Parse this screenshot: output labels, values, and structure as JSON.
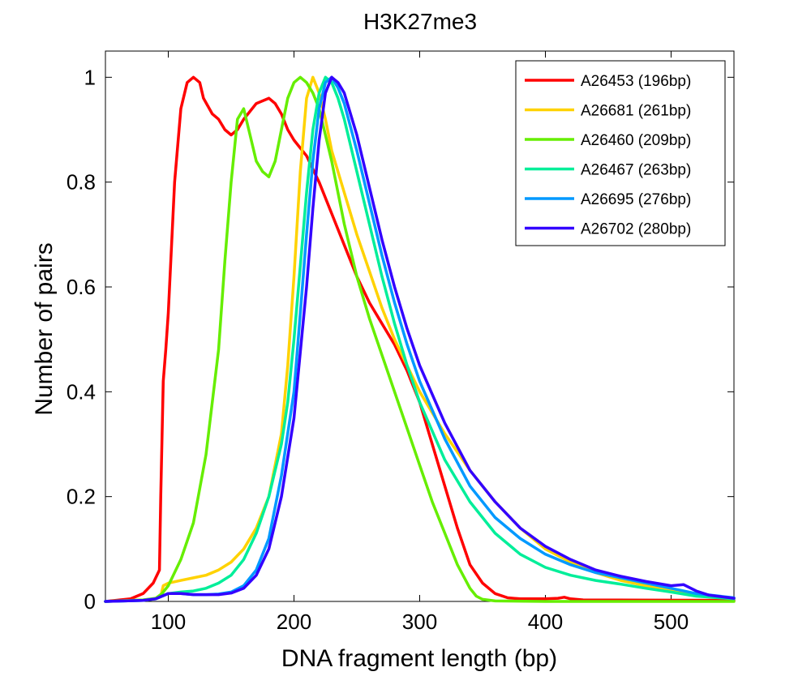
{
  "chart_data": {
    "type": "line",
    "title": "H3K27me3",
    "xlabel": "DNA fragment length (bp)",
    "ylabel": "Number of pairs",
    "xlim": [
      50,
      550
    ],
    "ylim": [
      0,
      1.05
    ],
    "xticks": [
      100,
      200,
      300,
      400,
      500
    ],
    "xtick_labels": [
      "100",
      "200",
      "300",
      "400",
      "500"
    ],
    "yticks": [
      0,
      0.2,
      0.4,
      0.6,
      0.8,
      1
    ],
    "ytick_labels": [
      "0",
      "0.2",
      "0.4",
      "0.6",
      "0.8",
      "1"
    ],
    "grid": false,
    "legend_position": "top-right",
    "series": [
      {
        "name": "A26453 (196bp)",
        "color": "#ff0000",
        "x": [
          50,
          70,
          80,
          88,
          93,
          94,
          96,
          98,
          100,
          105,
          110,
          115,
          120,
          125,
          128,
          135,
          140,
          145,
          150,
          155,
          160,
          170,
          180,
          185,
          190,
          195,
          200,
          210,
          220,
          230,
          240,
          250,
          260,
          270,
          280,
          290,
          300,
          310,
          320,
          330,
          340,
          350,
          360,
          370,
          380,
          400,
          410,
          415,
          420,
          430,
          550
        ],
        "y": [
          0,
          0.005,
          0.015,
          0.035,
          0.06,
          0.2,
          0.42,
          0.48,
          0.55,
          0.8,
          0.94,
          0.99,
          1.0,
          0.99,
          0.96,
          0.93,
          0.92,
          0.9,
          0.89,
          0.9,
          0.92,
          0.95,
          0.96,
          0.95,
          0.93,
          0.9,
          0.88,
          0.85,
          0.8,
          0.74,
          0.68,
          0.62,
          0.57,
          0.53,
          0.49,
          0.44,
          0.38,
          0.3,
          0.22,
          0.14,
          0.07,
          0.035,
          0.015,
          0.007,
          0.005,
          0.005,
          0.006,
          0.008,
          0.005,
          0.003,
          0.002
        ]
      },
      {
        "name": "A26681 (261bp)",
        "color": "#ffd200",
        "x": [
          50,
          80,
          90,
          94,
          96,
          100,
          110,
          120,
          130,
          140,
          150,
          160,
          170,
          180,
          190,
          195,
          200,
          205,
          210,
          215,
          220,
          225,
          230,
          240,
          250,
          260,
          270,
          280,
          290,
          300,
          320,
          340,
          360,
          380,
          400,
          420,
          440,
          460,
          480,
          500,
          520,
          550
        ],
        "y": [
          0,
          0.003,
          0.005,
          0.01,
          0.03,
          0.035,
          0.04,
          0.045,
          0.05,
          0.06,
          0.075,
          0.1,
          0.14,
          0.2,
          0.32,
          0.45,
          0.62,
          0.82,
          0.96,
          1.0,
          0.97,
          0.92,
          0.86,
          0.78,
          0.7,
          0.63,
          0.56,
          0.5,
          0.45,
          0.4,
          0.32,
          0.25,
          0.19,
          0.14,
          0.1,
          0.075,
          0.055,
          0.04,
          0.03,
          0.02,
          0.013,
          0.006
        ]
      },
      {
        "name": "A26460 (209bp)",
        "color": "#66ee00",
        "x": [
          50,
          80,
          90,
          95,
          100,
          110,
          120,
          130,
          140,
          145,
          150,
          155,
          160,
          165,
          170,
          175,
          180,
          185,
          190,
          195,
          200,
          205,
          210,
          215,
          220,
          230,
          240,
          250,
          260,
          270,
          280,
          290,
          300,
          310,
          320,
          330,
          340,
          345,
          350,
          360,
          400,
          550
        ],
        "y": [
          0,
          0.003,
          0.006,
          0.015,
          0.03,
          0.08,
          0.15,
          0.28,
          0.48,
          0.65,
          0.8,
          0.92,
          0.94,
          0.89,
          0.84,
          0.82,
          0.81,
          0.84,
          0.9,
          0.96,
          0.99,
          1.0,
          0.99,
          0.97,
          0.94,
          0.84,
          0.72,
          0.62,
          0.54,
          0.47,
          0.4,
          0.33,
          0.26,
          0.19,
          0.13,
          0.07,
          0.025,
          0.01,
          0.004,
          0.001,
          0,
          0
        ]
      },
      {
        "name": "A26467 (263bp)",
        "color": "#00ee99",
        "x": [
          50,
          80,
          90,
          95,
          100,
          110,
          120,
          130,
          140,
          150,
          160,
          170,
          180,
          190,
          195,
          200,
          205,
          210,
          215,
          220,
          225,
          230,
          235,
          240,
          250,
          260,
          270,
          280,
          290,
          300,
          320,
          340,
          360,
          380,
          400,
          420,
          440,
          460,
          480,
          500,
          520,
          550
        ],
        "y": [
          0,
          0.002,
          0.005,
          0.01,
          0.015,
          0.018,
          0.02,
          0.025,
          0.035,
          0.05,
          0.08,
          0.13,
          0.2,
          0.3,
          0.38,
          0.5,
          0.64,
          0.78,
          0.9,
          0.97,
          1.0,
          0.99,
          0.96,
          0.92,
          0.82,
          0.72,
          0.62,
          0.53,
          0.45,
          0.38,
          0.27,
          0.19,
          0.13,
          0.09,
          0.065,
          0.05,
          0.04,
          0.033,
          0.025,
          0.018,
          0.01,
          0.005
        ]
      },
      {
        "name": "A26695 (276bp)",
        "color": "#0099ff",
        "x": [
          50,
          80,
          90,
          95,
          100,
          110,
          120,
          130,
          140,
          150,
          160,
          170,
          180,
          190,
          200,
          205,
          210,
          215,
          220,
          225,
          230,
          235,
          240,
          250,
          260,
          270,
          280,
          290,
          300,
          320,
          340,
          360,
          380,
          400,
          420,
          440,
          460,
          480,
          500,
          520,
          550
        ],
        "y": [
          0,
          0.002,
          0.005,
          0.01,
          0.015,
          0.015,
          0.013,
          0.013,
          0.014,
          0.018,
          0.03,
          0.06,
          0.12,
          0.24,
          0.4,
          0.55,
          0.7,
          0.84,
          0.94,
          0.99,
          1.0,
          0.98,
          0.95,
          0.86,
          0.76,
          0.66,
          0.57,
          0.49,
          0.42,
          0.31,
          0.22,
          0.16,
          0.12,
          0.09,
          0.07,
          0.055,
          0.045,
          0.035,
          0.025,
          0.015,
          0.007
        ]
      },
      {
        "name": "A26702 (280bp)",
        "color": "#3300ff",
        "x": [
          50,
          80,
          90,
          95,
          100,
          110,
          120,
          130,
          140,
          150,
          160,
          170,
          180,
          190,
          200,
          210,
          215,
          220,
          225,
          230,
          235,
          240,
          250,
          260,
          270,
          280,
          290,
          300,
          320,
          340,
          360,
          380,
          400,
          420,
          440,
          460,
          480,
          500,
          510,
          520,
          530,
          550
        ],
        "y": [
          0,
          0.002,
          0.005,
          0.01,
          0.015,
          0.015,
          0.013,
          0.013,
          0.013,
          0.016,
          0.025,
          0.05,
          0.1,
          0.2,
          0.35,
          0.6,
          0.75,
          0.88,
          0.97,
          1.0,
          0.99,
          0.97,
          0.89,
          0.79,
          0.69,
          0.6,
          0.52,
          0.45,
          0.34,
          0.25,
          0.19,
          0.14,
          0.105,
          0.08,
          0.06,
          0.048,
          0.038,
          0.03,
          0.032,
          0.02,
          0.012,
          0.006
        ]
      }
    ]
  }
}
